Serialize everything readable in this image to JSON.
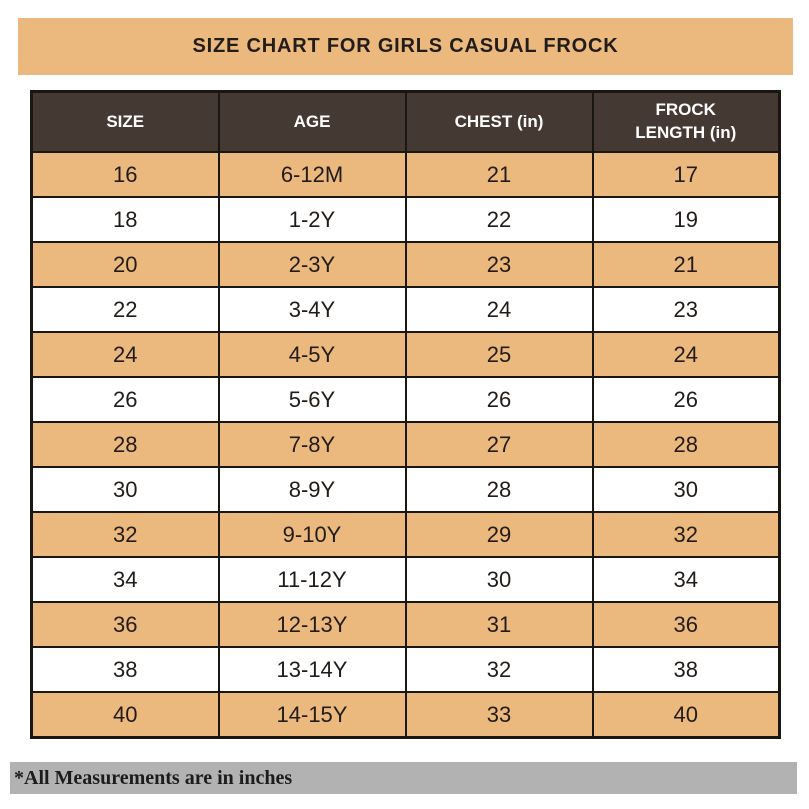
{
  "page": {
    "title": "SIZE CHART FOR GIRLS CASUAL FROCK",
    "footer_note": "*All Measurements are in inches"
  },
  "colors": {
    "banner_bg": "#EBB87D",
    "header_row_bg": "#443A33",
    "header_text": "#FFFFFF",
    "alt_row_bg": "#EBB87D",
    "plain_row_bg": "#FFFFFF",
    "footer_bg": "#B2B2B2",
    "border": "#1A1612",
    "body_text": "#211C18"
  },
  "table": {
    "headers": [
      "SIZE",
      "AGE",
      "CHEST (in)",
      "FROCK LENGTH (in)"
    ],
    "rows": [
      [
        "16",
        "6-12M",
        "21",
        "17"
      ],
      [
        "18",
        "1-2Y",
        "22",
        "19"
      ],
      [
        "20",
        "2-3Y",
        "23",
        "21"
      ],
      [
        "22",
        "3-4Y",
        "24",
        "23"
      ],
      [
        "24",
        "4-5Y",
        "25",
        "24"
      ],
      [
        "26",
        "5-6Y",
        "26",
        "26"
      ],
      [
        "28",
        "7-8Y",
        "27",
        "28"
      ],
      [
        "30",
        "8-9Y",
        "28",
        "30"
      ],
      [
        "32",
        "9-10Y",
        "29",
        "32"
      ],
      [
        "34",
        "11-12Y",
        "30",
        "34"
      ],
      [
        "36",
        "12-13Y",
        "31",
        "36"
      ],
      [
        "38",
        "13-14Y",
        "32",
        "38"
      ],
      [
        "40",
        "14-15Y",
        "33",
        "40"
      ]
    ]
  }
}
